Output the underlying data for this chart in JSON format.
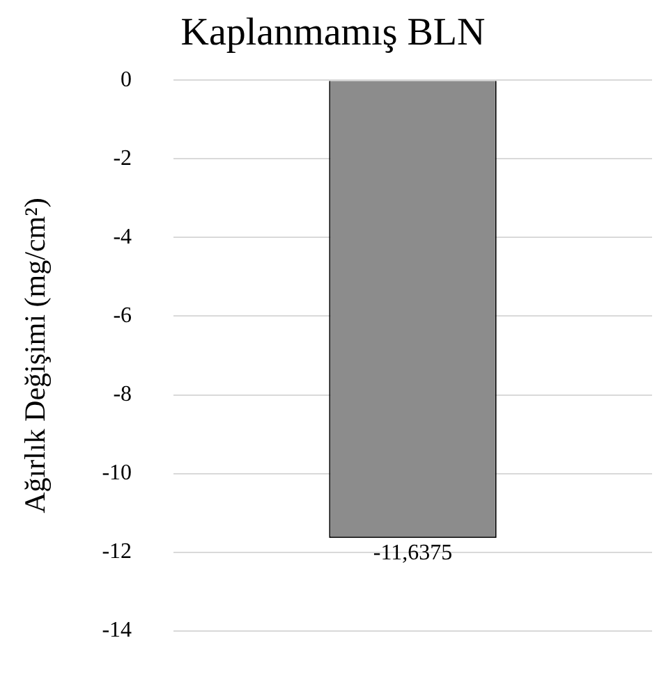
{
  "chart_data": {
    "type": "bar",
    "title": "Kaplanmamış BLN",
    "ylabel": "Ağırlık Değişimi (mg/cm²)",
    "categories": [
      null
    ],
    "values": [
      -11.6375
    ],
    "value_labels": [
      "-11,6375"
    ],
    "color": "#8c8c8c",
    "ylim": [
      -14,
      0
    ],
    "yticks": [
      0,
      -2,
      -4,
      -6,
      -8,
      -10,
      -12,
      -14
    ],
    "grid": "y",
    "legend": false
  }
}
